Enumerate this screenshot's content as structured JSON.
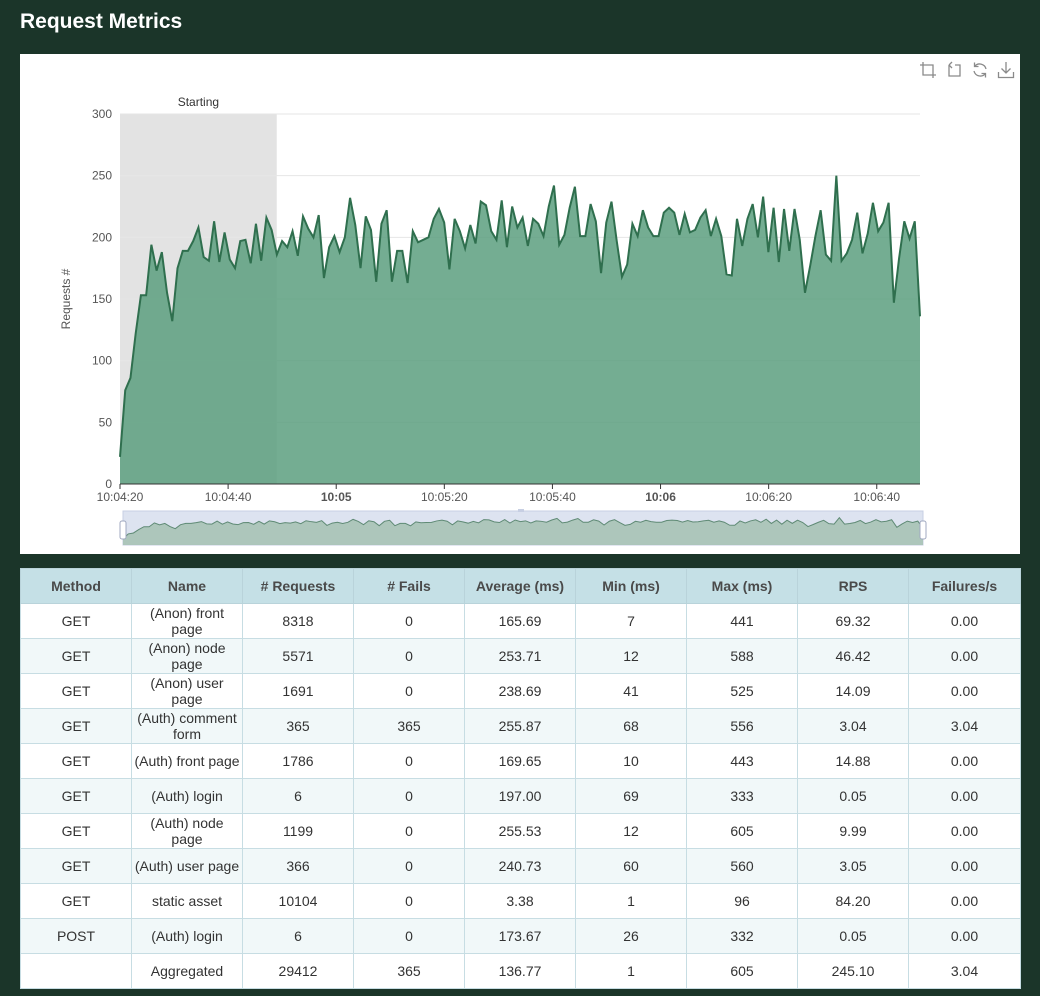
{
  "page": {
    "title": "Request Metrics"
  },
  "toolbox": {
    "icons": [
      "zoom-icon",
      "zoom-reset-icon",
      "restore-icon",
      "download-icon"
    ]
  },
  "chart_data": {
    "type": "area",
    "title": "",
    "xlabel": "",
    "ylabel": "Requests #",
    "ylim": [
      0,
      300
    ],
    "yticks": [
      0,
      50,
      100,
      150,
      200,
      250,
      300
    ],
    "xlim": [
      "10:04:20",
      "10:06:48"
    ],
    "xticks": [
      {
        "t": "10:04:20",
        "label": "10:04:20",
        "bold": false
      },
      {
        "t": "10:04:40",
        "label": "10:04:40",
        "bold": false
      },
      {
        "t": "10:05:00",
        "label": "10:05",
        "bold": true
      },
      {
        "t": "10:05:20",
        "label": "10:05:20",
        "bold": false
      },
      {
        "t": "10:05:40",
        "label": "10:05:40",
        "bold": false
      },
      {
        "t": "10:06:00",
        "label": "10:06",
        "bold": true
      },
      {
        "t": "10:06:20",
        "label": "10:06:20",
        "bold": false
      },
      {
        "t": "10:06:40",
        "label": "10:06:40",
        "bold": false
      }
    ],
    "markArea": {
      "label": "Starting",
      "from": "10:04:20",
      "to": "10:04:49"
    },
    "grid": true,
    "colors": {
      "line": "#2f6f4e",
      "fill": "#5c9f7f",
      "markArea": "#e3e3e3"
    },
    "series": [
      {
        "values": [
          22,
          76,
          86,
          122,
          153,
          153,
          194,
          173,
          188,
          155,
          132,
          175,
          189,
          189,
          197,
          208,
          184,
          181,
          213,
          180,
          204,
          182,
          175,
          197,
          198,
          179,
          211,
          181,
          216,
          206,
          186,
          197,
          192,
          205,
          185,
          217,
          207,
          200,
          218,
          167,
          192,
          201,
          188,
          200,
          232,
          210,
          175,
          217,
          206,
          164,
          211,
          222,
          164,
          189,
          189,
          163,
          205,
          196,
          198,
          200,
          215,
          223,
          212,
          174,
          215,
          205,
          191,
          210,
          195,
          229,
          226,
          205,
          198,
          230,
          192,
          225,
          208,
          216,
          193,
          215,
          211,
          201,
          225,
          242,
          194,
          202,
          224,
          241,
          201,
          201,
          227,
          213,
          171,
          212,
          229,
          197,
          168,
          178,
          211,
          201,
          222,
          208,
          201,
          201,
          220,
          224,
          220,
          202,
          219,
          204,
          206,
          216,
          222,
          201,
          215,
          201,
          170,
          169,
          215,
          193,
          215,
          227,
          200,
          233,
          188,
          224,
          180,
          223,
          189,
          223,
          198,
          155,
          177,
          201,
          222,
          186,
          181,
          250,
          181,
          187,
          198,
          220,
          187,
          203,
          228,
          205,
          212,
          228,
          147,
          183,
          213,
          199,
          213,
          136
        ]
      }
    ]
  },
  "table": {
    "headers": [
      "Method",
      "Name",
      "# Requests",
      "# Fails",
      "Average (ms)",
      "Min (ms)",
      "Max (ms)",
      "RPS",
      "Failures/s"
    ],
    "rows": [
      [
        "GET",
        "(Anon) front page",
        "8318",
        "0",
        "165.69",
        "7",
        "441",
        "69.32",
        "0.00"
      ],
      [
        "GET",
        "(Anon) node page",
        "5571",
        "0",
        "253.71",
        "12",
        "588",
        "46.42",
        "0.00"
      ],
      [
        "GET",
        "(Anon) user page",
        "1691",
        "0",
        "238.69",
        "41",
        "525",
        "14.09",
        "0.00"
      ],
      [
        "GET",
        "(Auth) comment form",
        "365",
        "365",
        "255.87",
        "68",
        "556",
        "3.04",
        "3.04"
      ],
      [
        "GET",
        "(Auth) front page",
        "1786",
        "0",
        "169.65",
        "10",
        "443",
        "14.88",
        "0.00"
      ],
      [
        "GET",
        "(Auth) login",
        "6",
        "0",
        "197.00",
        "69",
        "333",
        "0.05",
        "0.00"
      ],
      [
        "GET",
        "(Auth) node page",
        "1199",
        "0",
        "255.53",
        "12",
        "605",
        "9.99",
        "0.00"
      ],
      [
        "GET",
        "(Auth) user page",
        "366",
        "0",
        "240.73",
        "60",
        "560",
        "3.05",
        "0.00"
      ],
      [
        "GET",
        "static asset",
        "10104",
        "0",
        "3.38",
        "1",
        "96",
        "84.20",
        "0.00"
      ],
      [
        "POST",
        "(Auth) login",
        "6",
        "0",
        "173.67",
        "26",
        "332",
        "0.05",
        "0.00"
      ],
      [
        "",
        "Aggregated",
        "29412",
        "365",
        "136.77",
        "1",
        "605",
        "245.10",
        "3.04"
      ]
    ]
  }
}
